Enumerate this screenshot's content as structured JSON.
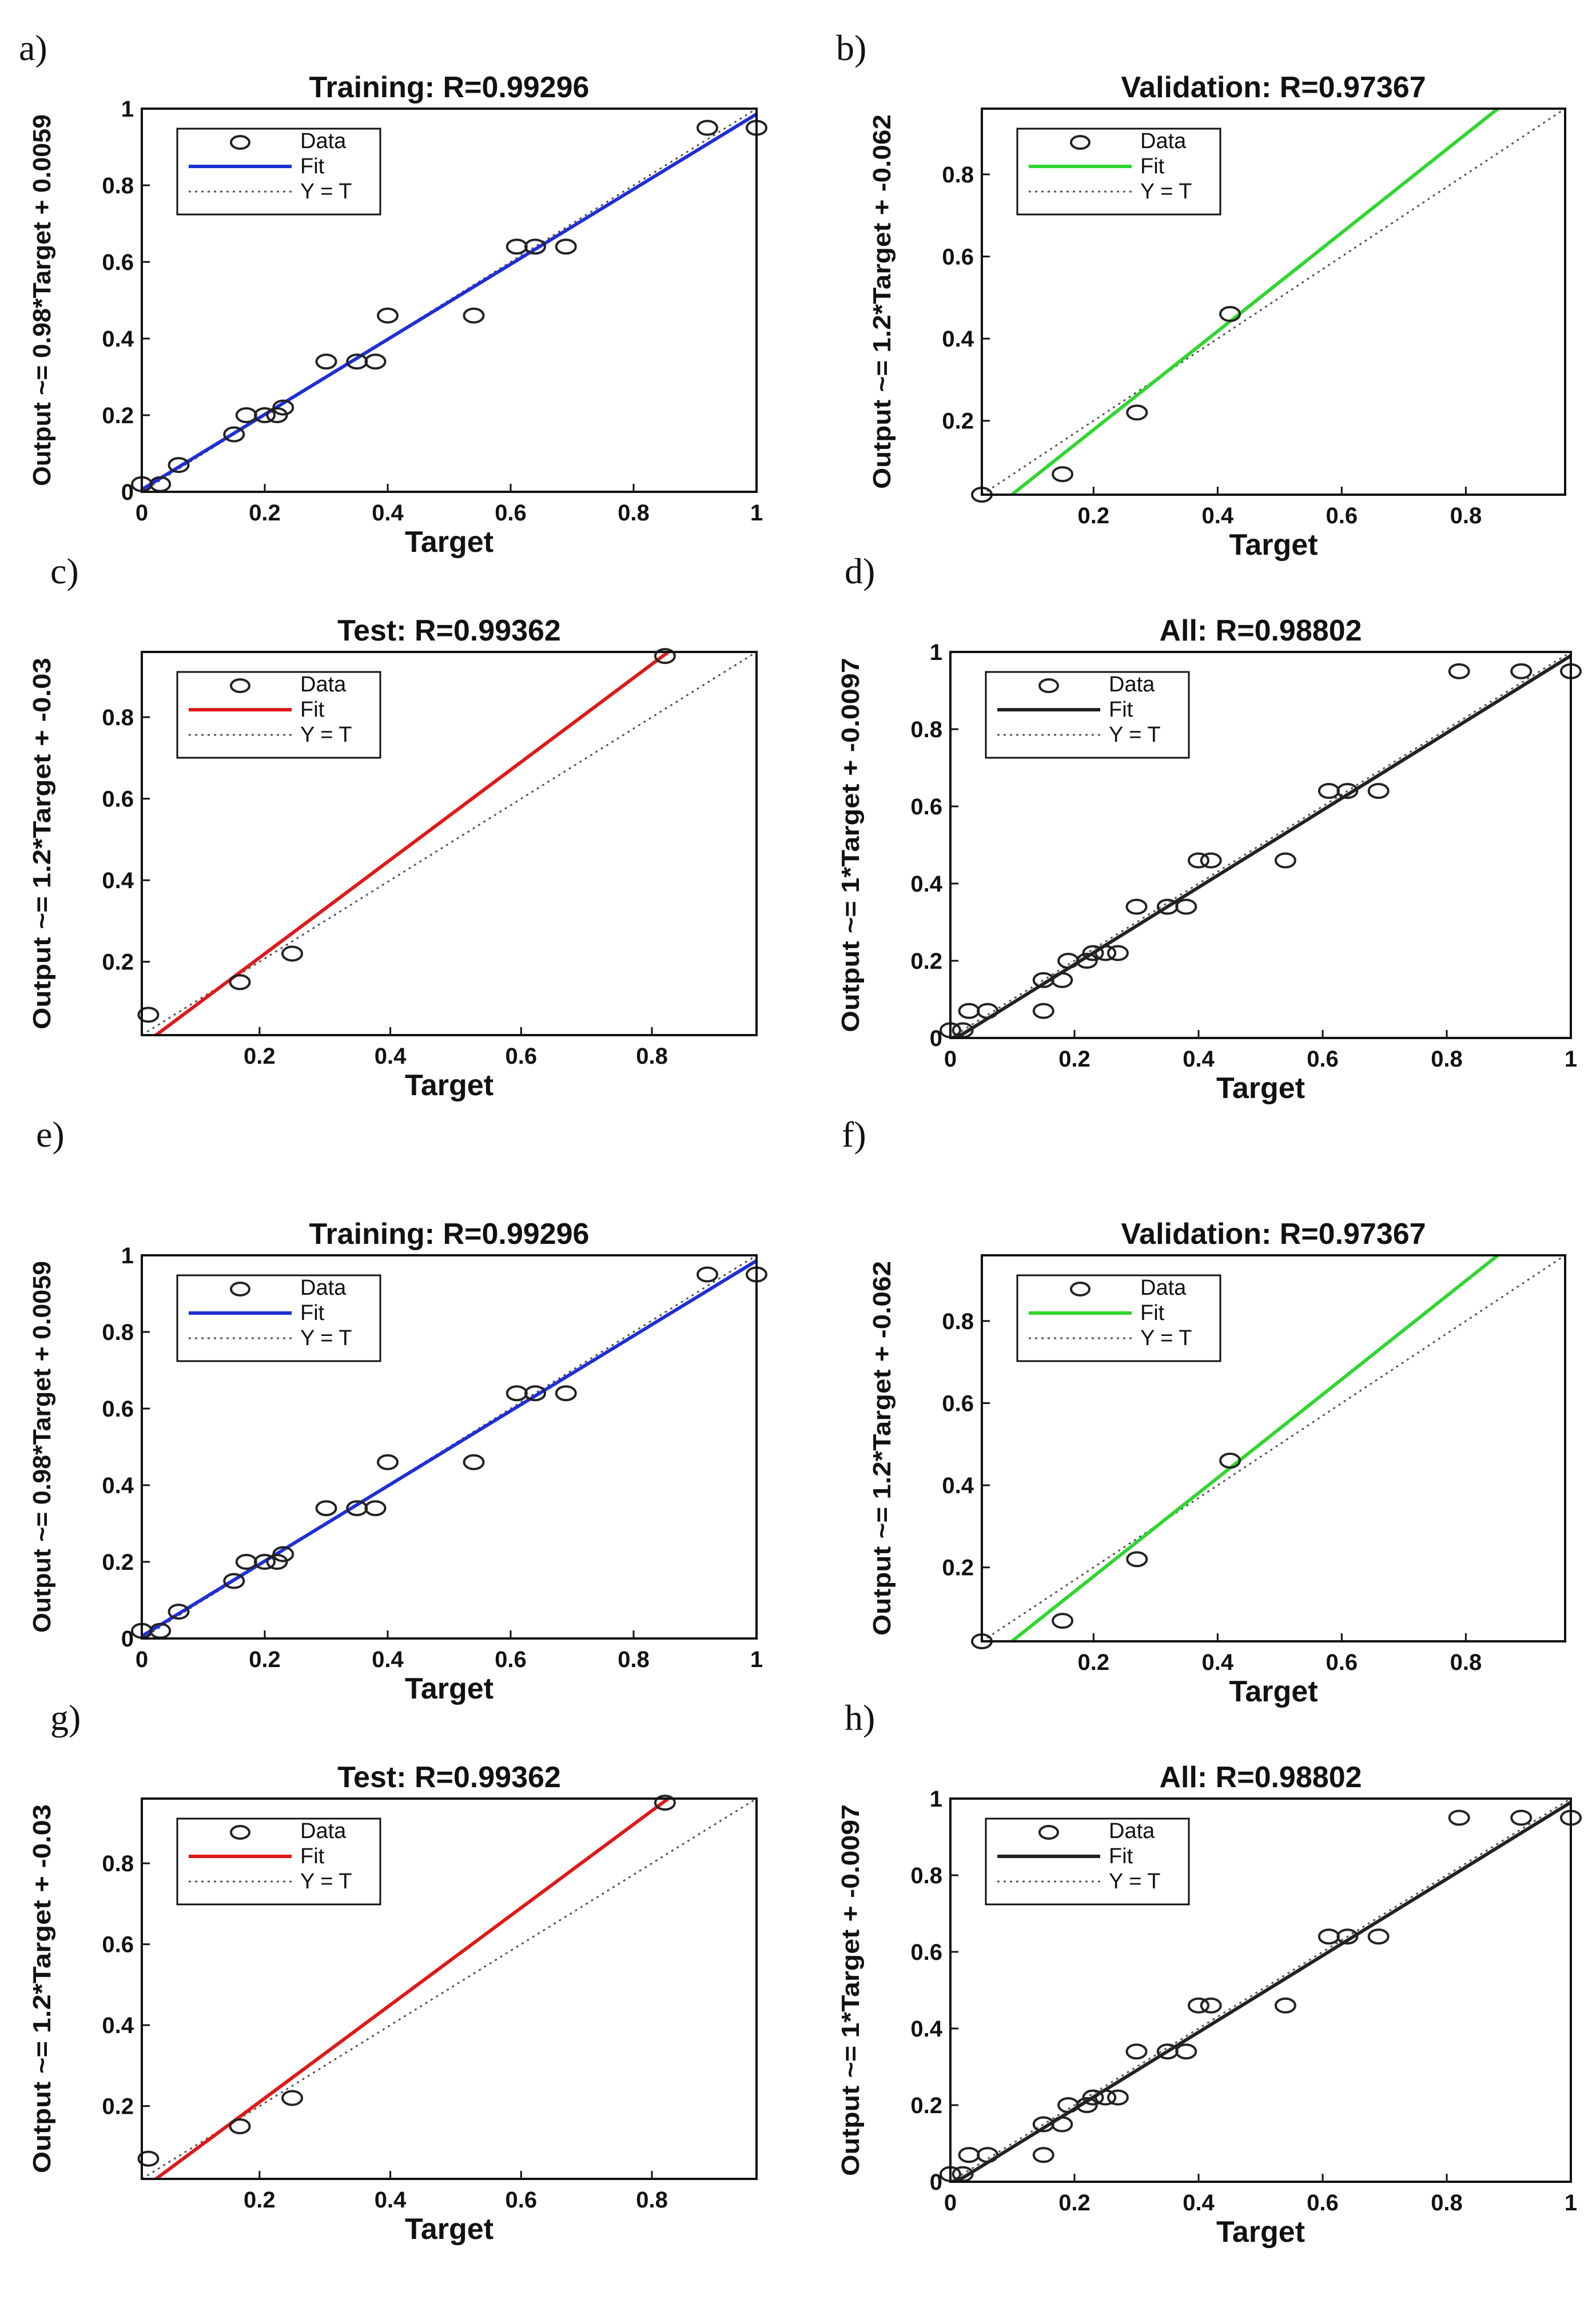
{
  "chart_data": [
    {
      "panel": "a)",
      "type": "scatter",
      "title": "Training: R=0.99296",
      "xlabel": "Target",
      "ylabel": "Output ~= 0.98*Target + 0.0059",
      "xlim": [
        0,
        1
      ],
      "ylim": [
        0,
        1
      ],
      "xticks": [
        "0",
        "0.2",
        "0.4",
        "0.6",
        "0.8",
        "1"
      ],
      "yticks": [
        "0",
        "0.2",
        "0.4",
        "0.6",
        "0.8",
        "1"
      ],
      "fit_color": "#1f2fd6",
      "fit": {
        "slope": 0.98,
        "intercept": 0.0059
      },
      "legend": [
        "Data",
        "Fit",
        "Y = T"
      ],
      "legend_position": "top-left",
      "x": [
        0.0,
        0.03,
        0.06,
        0.15,
        0.17,
        0.2,
        0.22,
        0.23,
        0.3,
        0.35,
        0.38,
        0.4,
        0.54,
        0.61,
        0.64,
        0.69,
        0.92,
        1.0
      ],
      "y": [
        0.02,
        0.02,
        0.07,
        0.15,
        0.2,
        0.2,
        0.2,
        0.22,
        0.34,
        0.34,
        0.34,
        0.46,
        0.46,
        0.64,
        0.64,
        0.64,
        0.95,
        0.95
      ]
    },
    {
      "panel": "b)",
      "type": "scatter",
      "title": "Validation: R=0.97367",
      "xlabel": "Target",
      "ylabel": "Output ~= 1.2*Target + -0.062",
      "xlim": [
        0.02,
        0.96
      ],
      "ylim": [
        0.02,
        0.96
      ],
      "xticks": [
        "0.2",
        "0.4",
        "0.6",
        "0.8"
      ],
      "yticks": [
        "0.2",
        "0.4",
        "0.6",
        "0.8"
      ],
      "fit_color": "#2fd62f",
      "fit": {
        "slope": 1.2,
        "intercept": -0.062
      },
      "legend": [
        "Data",
        "Fit",
        "Y = T"
      ],
      "legend_position": "top-left",
      "x": [
        0.02,
        0.15,
        0.27,
        0.42
      ],
      "y": [
        0.02,
        0.07,
        0.22,
        0.46
      ]
    },
    {
      "panel": "c)",
      "type": "scatter",
      "title": "Test: R=0.99362",
      "xlabel": "Target",
      "ylabel": "Output ~= 1.2*Target + -0.03",
      "xlim": [
        0.02,
        0.96
      ],
      "ylim": [
        0.02,
        0.96
      ],
      "xticks": [
        "0.2",
        "0.4",
        "0.6",
        "0.8"
      ],
      "yticks": [
        "0.2",
        "0.4",
        "0.6",
        "0.8"
      ],
      "fit_color": "#e01818",
      "fit": {
        "slope": 1.2,
        "intercept": -0.03
      },
      "legend": [
        "Data",
        "Fit",
        "Y = T"
      ],
      "legend_position": "top-left",
      "x": [
        0.03,
        0.17,
        0.25,
        0.82
      ],
      "y": [
        0.07,
        0.15,
        0.22,
        0.95
      ]
    },
    {
      "panel": "d)",
      "type": "scatter",
      "title": "All: R=0.98802",
      "xlabel": "Target",
      "ylabel": "Output ~= 1*Target + -0.0097",
      "xlim": [
        0,
        1
      ],
      "ylim": [
        0,
        1
      ],
      "xticks": [
        "0",
        "0.2",
        "0.4",
        "0.6",
        "0.8",
        "1"
      ],
      "yticks": [
        "0",
        "0.2",
        "0.4",
        "0.6",
        "0.8",
        "1"
      ],
      "fit_color": "#222222",
      "fit": {
        "slope": 1.0,
        "intercept": -0.0097
      },
      "legend": [
        "Data",
        "Fit",
        "Y = T"
      ],
      "legend_position": "top-left",
      "x": [
        0.0,
        0.02,
        0.03,
        0.06,
        0.15,
        0.15,
        0.18,
        0.19,
        0.22,
        0.23,
        0.25,
        0.27,
        0.3,
        0.35,
        0.38,
        0.4,
        0.42,
        0.54,
        0.61,
        0.64,
        0.69,
        0.82,
        0.92,
        1.0
      ],
      "y": [
        0.02,
        0.02,
        0.07,
        0.07,
        0.07,
        0.15,
        0.15,
        0.2,
        0.2,
        0.22,
        0.22,
        0.22,
        0.34,
        0.34,
        0.34,
        0.46,
        0.46,
        0.46,
        0.64,
        0.64,
        0.64,
        0.95,
        0.95,
        0.95
      ]
    },
    {
      "panel": "e)",
      "type": "scatter",
      "title": "Training: R=0.99296",
      "xlabel": "Target",
      "ylabel": "Output ~= 0.98*Target + 0.0059",
      "xlim": [
        0,
        1
      ],
      "ylim": [
        0,
        1
      ],
      "xticks": [
        "0",
        "0.2",
        "0.4",
        "0.6",
        "0.8",
        "1"
      ],
      "yticks": [
        "0",
        "0.2",
        "0.4",
        "0.6",
        "0.8",
        "1"
      ],
      "fit_color": "#1f2fd6",
      "fit": {
        "slope": 0.98,
        "intercept": 0.0059
      },
      "legend": [
        "Data",
        "Fit",
        "Y = T"
      ],
      "legend_position": "top-left",
      "x": [
        0.0,
        0.03,
        0.06,
        0.15,
        0.17,
        0.2,
        0.22,
        0.23,
        0.3,
        0.35,
        0.38,
        0.4,
        0.54,
        0.61,
        0.64,
        0.69,
        0.92,
        1.0
      ],
      "y": [
        0.02,
        0.02,
        0.07,
        0.15,
        0.2,
        0.2,
        0.2,
        0.22,
        0.34,
        0.34,
        0.34,
        0.46,
        0.46,
        0.64,
        0.64,
        0.64,
        0.95,
        0.95
      ]
    },
    {
      "panel": "f)",
      "type": "scatter",
      "title": "Validation: R=0.97367",
      "xlabel": "Target",
      "ylabel": "Output ~= 1.2*Target + -0.062",
      "xlim": [
        0.02,
        0.96
      ],
      "ylim": [
        0.02,
        0.96
      ],
      "xticks": [
        "0.2",
        "0.4",
        "0.6",
        "0.8"
      ],
      "yticks": [
        "0.2",
        "0.4",
        "0.6",
        "0.8"
      ],
      "fit_color": "#2fd62f",
      "fit": {
        "slope": 1.2,
        "intercept": -0.062
      },
      "legend": [
        "Data",
        "Fit",
        "Y = T"
      ],
      "legend_position": "top-left",
      "x": [
        0.02,
        0.15,
        0.27,
        0.42
      ],
      "y": [
        0.02,
        0.07,
        0.22,
        0.46
      ]
    },
    {
      "panel": "g)",
      "type": "scatter",
      "title": "Test: R=0.99362",
      "xlabel": "Target",
      "ylabel": "Output ~= 1.2*Target + -0.03",
      "xlim": [
        0.02,
        0.96
      ],
      "ylim": [
        0.02,
        0.96
      ],
      "xticks": [
        "0.2",
        "0.4",
        "0.6",
        "0.8"
      ],
      "yticks": [
        "0.2",
        "0.4",
        "0.6",
        "0.8"
      ],
      "fit_color": "#e01818",
      "fit": {
        "slope": 1.2,
        "intercept": -0.03
      },
      "legend": [
        "Data",
        "Fit",
        "Y = T"
      ],
      "legend_position": "top-left",
      "x": [
        0.03,
        0.17,
        0.25,
        0.82
      ],
      "y": [
        0.07,
        0.15,
        0.22,
        0.95
      ]
    },
    {
      "panel": "h)",
      "type": "scatter",
      "title": "All: R=0.98802",
      "xlabel": "Target",
      "ylabel": "Output ~= 1*Target + -0.0097",
      "xlim": [
        0,
        1
      ],
      "ylim": [
        0,
        1
      ],
      "xticks": [
        "0",
        "0.2",
        "0.4",
        "0.6",
        "0.8",
        "1"
      ],
      "yticks": [
        "0",
        "0.2",
        "0.4",
        "0.6",
        "0.8",
        "1"
      ],
      "fit_color": "#222222",
      "fit": {
        "slope": 1.0,
        "intercept": -0.0097
      },
      "legend": [
        "Data",
        "Fit",
        "Y = T"
      ],
      "legend_position": "top-left",
      "x": [
        0.0,
        0.02,
        0.03,
        0.06,
        0.15,
        0.15,
        0.18,
        0.19,
        0.22,
        0.23,
        0.25,
        0.27,
        0.3,
        0.35,
        0.38,
        0.4,
        0.42,
        0.54,
        0.61,
        0.64,
        0.69,
        0.82,
        0.92,
        1.0
      ],
      "y": [
        0.02,
        0.02,
        0.07,
        0.07,
        0.07,
        0.15,
        0.15,
        0.2,
        0.2,
        0.22,
        0.22,
        0.22,
        0.34,
        0.34,
        0.34,
        0.46,
        0.46,
        0.46,
        0.64,
        0.64,
        0.64,
        0.95,
        0.95,
        0.95
      ]
    }
  ]
}
